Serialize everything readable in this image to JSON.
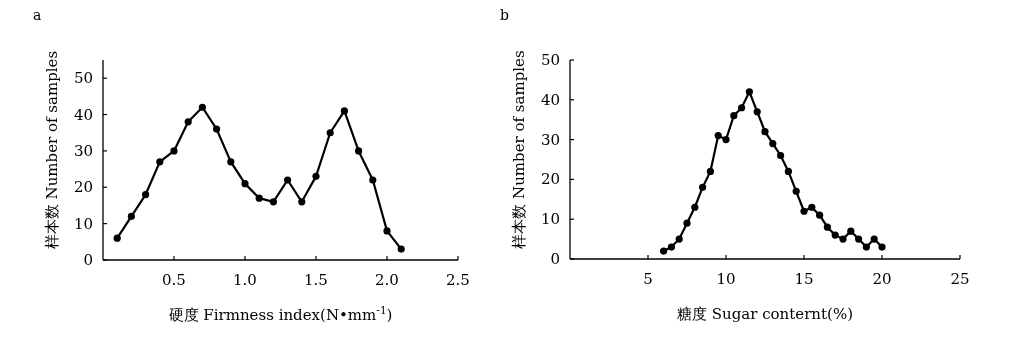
{
  "chart_data": [
    {
      "type": "line",
      "title": "a",
      "xlabel": "硬度 Firmness index(N•mm$^{-1}$)",
      "ylabel": "样本数 Number of samples",
      "x": [
        0.1,
        0.2,
        0.3,
        0.4,
        0.5,
        0.6,
        0.7,
        0.8,
        0.9,
        1.0,
        1.1,
        1.2,
        1.3,
        1.4,
        1.5,
        1.6,
        1.7,
        1.8,
        1.9,
        2.0,
        2.1
      ],
      "series": [
        {
          "color": "#000000",
          "values": [
            6,
            12,
            18,
            27,
            30,
            38,
            42,
            36,
            27,
            21,
            17,
            16,
            22,
            16,
            23,
            35,
            41,
            30,
            22,
            8,
            3
          ]
        }
      ],
      "xlim": [
        0,
        2.5
      ],
      "ylim": [
        0,
        55
      ],
      "xticks": [
        {
          "value": 0.5,
          "label": "0.5"
        },
        {
          "value": 1,
          "label": "1.0"
        },
        {
          "value": 1.5,
          "label": "1.5"
        },
        {
          "value": 2,
          "label": "2.0"
        },
        {
          "value": 2.5,
          "label": "2.5"
        }
      ],
      "yticks": [
        0,
        10,
        20,
        30,
        40,
        50
      ],
      "marker": "circle",
      "line_style": "solid",
      "grid": false
    },
    {
      "type": "line",
      "title": "b",
      "xlabel": "糖度 Sugar conternt(%)",
      "ylabel": "样本数 Number of samples",
      "x": [
        6,
        6.5,
        7,
        7.5,
        8,
        8.5,
        9,
        9.5,
        10,
        10.5,
        11,
        11.5,
        12,
        12.5,
        13,
        13.5,
        14,
        14.5,
        15,
        15.5,
        16,
        16.5,
        17,
        17.5,
        18,
        18.5,
        19,
        19.5,
        20
      ],
      "series": [
        {
          "color": "#000000",
          "values": [
            2,
            3,
            5,
            9,
            13,
            18,
            22,
            31,
            30,
            36,
            38,
            42,
            37,
            32,
            29,
            26,
            22,
            17,
            12,
            13,
            11,
            8,
            6,
            5,
            7,
            5,
            3,
            5,
            3
          ]
        }
      ],
      "xlim": [
        0,
        25
      ],
      "ylim": [
        0,
        50
      ],
      "xticks": [
        5,
        10,
        15,
        20,
        25
      ],
      "yticks": [
        0,
        10,
        20,
        30,
        40,
        50
      ],
      "marker": "circle",
      "line_style": "solid",
      "grid": false
    }
  ]
}
